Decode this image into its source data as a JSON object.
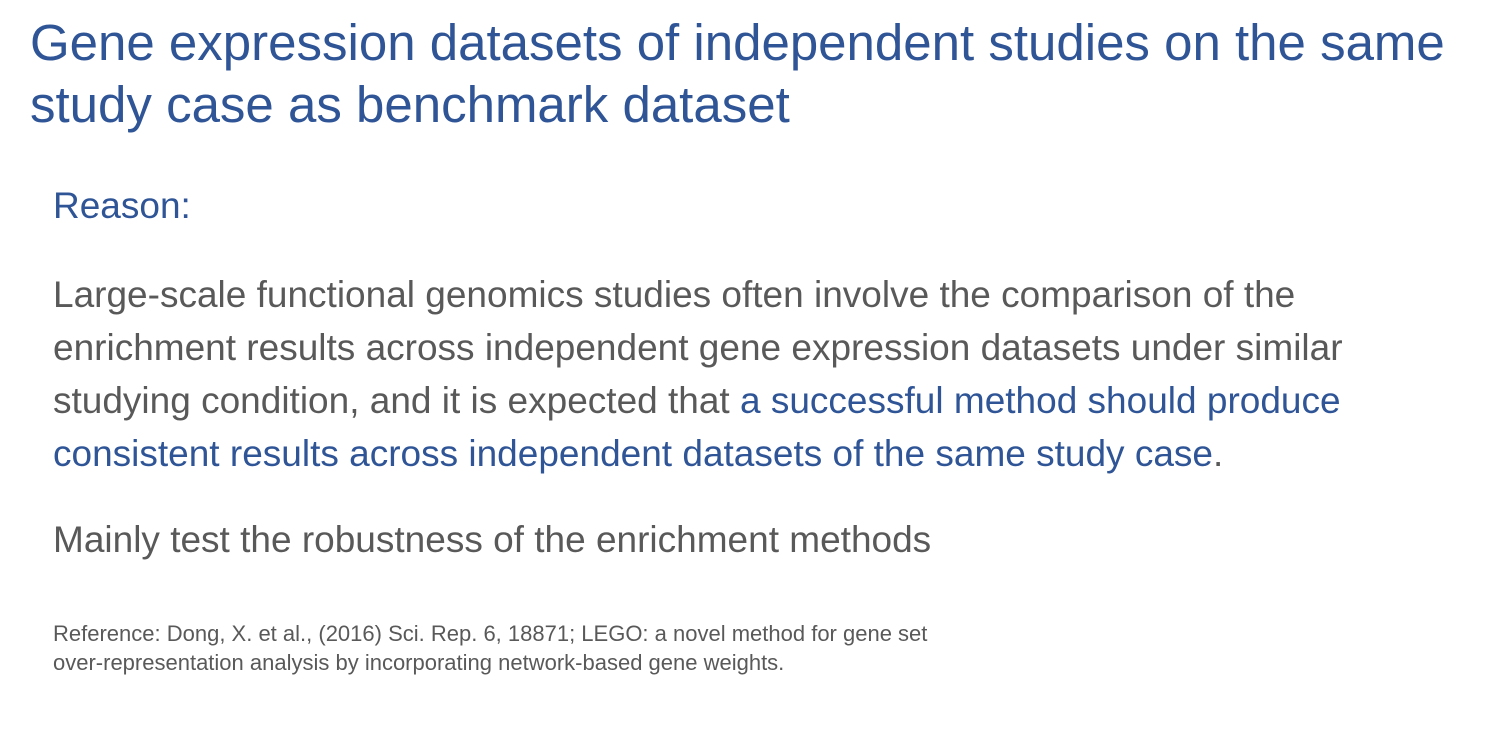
{
  "slide": {
    "title": "Gene expression datasets of independent studies on the same study case as benchmark dataset",
    "reason_label": "Reason:",
    "paragraph": {
      "before_highlight": "Large-scale functional genomics studies often involve the comparison of the enrichment results across independent gene expression datasets under similar studying condition, and it is expected that ",
      "highlight": "a successful method should produce consistent results across independent datasets of the same study case",
      "after_highlight": "."
    },
    "summary": "Mainly test the robustness of the enrichment methods",
    "reference": "Reference: Dong, X. et al., (2016) Sci. Rep. 6, 18871; LEGO: a novel method for gene set over-representation analysis by incorporating network-based gene weights."
  },
  "colors": {
    "accent": "#2f5597",
    "body_text": "#595959",
    "background": "#ffffff"
  }
}
